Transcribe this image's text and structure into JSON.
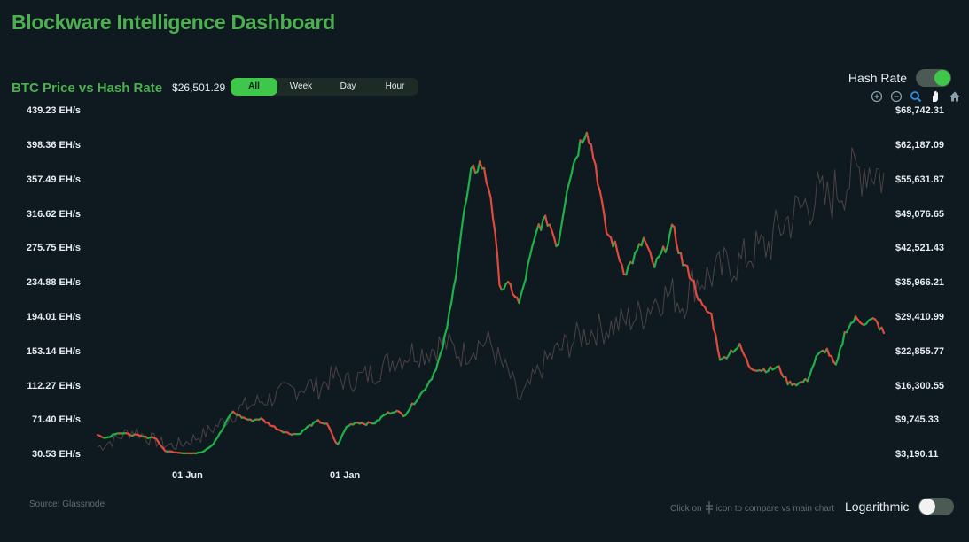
{
  "app_title": "Blockware Intelligence Dashboard",
  "chart_header": {
    "title": "BTC Price vs Hash Rate",
    "current_price": "$26,501.29"
  },
  "range_tabs": [
    {
      "label": "All",
      "active": true
    },
    {
      "label": "Week",
      "active": false
    },
    {
      "label": "Day",
      "active": false
    },
    {
      "label": "Hour",
      "active": false
    }
  ],
  "hash_rate_toggle": {
    "label": "Hash Rate",
    "on": true
  },
  "log_toggle": {
    "label": "Logarithmic",
    "on": false
  },
  "toolbar_icons": [
    "zoom-in-icon",
    "zoom-out-icon",
    "zoom-select-icon",
    "pan-hand-icon",
    "home-reset-icon"
  ],
  "footer": {
    "source": "Source: Glassnode",
    "hint_before": "Click on",
    "hint_after": "icon to compare vs main chart"
  },
  "colors": {
    "accent": "#3ec74a",
    "candle_up": "#1fb149",
    "candle_down": "#e04a3c",
    "hash_rate_line": "#4a4244",
    "background": "#0f1a20"
  },
  "chart_data": {
    "type": "line",
    "left_axis": {
      "unit": "EH/s",
      "ticks": [
        "439.23 EH/s",
        "398.36 EH/s",
        "357.49 EH/s",
        "316.62 EH/s",
        "275.75 EH/s",
        "234.88 EH/s",
        "194.01 EH/s",
        "153.14 EH/s",
        "112.27 EH/s",
        "71.40 EH/s",
        "30.53 EH/s"
      ],
      "range": [
        30.53,
        439.23
      ]
    },
    "right_axis": {
      "unit": "USD",
      "ticks": [
        "$68,742.31",
        "$62,187.09",
        "$55,631.87",
        "$49,076.65",
        "$42,521.43",
        "$35,966.21",
        "$29,410.99",
        "$22,855.77",
        "$16,300.55",
        "$9,745.33",
        "$3,190.11"
      ],
      "range": [
        3190.11,
        68742.31
      ]
    },
    "x_ticks": [
      "01 Jun",
      "01 Jan"
    ],
    "series": [
      {
        "axis": "right",
        "style": "candle",
        "values": [
          7000,
          6500,
          7500,
          7200,
          7000,
          6600,
          6600,
          4000,
          3800,
          3600,
          3500,
          3900,
          5200,
          8000,
          11500,
          10500,
          9800,
          10200,
          9000,
          8000,
          7300,
          7200,
          8700,
          9700,
          9000,
          5000,
          8700,
          9500,
          9200,
          9400,
          11000,
          11700,
          10800,
          13200,
          15500,
          18500,
          23500,
          33000,
          47000,
          57000,
          59000,
          53000,
          35000,
          35500,
          32000,
          40000,
          47000,
          48000,
          43000,
          55000,
          61000,
          66000,
          58000,
          46000,
          43000,
          38000,
          41000,
          44500,
          39000,
          42000,
          46500,
          40000,
          37000,
          31500,
          30000,
          21000,
          23000,
          24000,
          20000,
          19500,
          19500,
          20000,
          17000,
          16800,
          17500,
          22000,
          23500,
          20000,
          27000,
          29200,
          28500,
          29000,
          26501
        ]
      },
      {
        "axis": "left",
        "style": "line",
        "values": [
          40,
          45,
          50,
          57,
          60,
          52,
          48,
          43,
          42,
          45,
          50,
          55,
          62,
          70,
          78,
          87,
          90,
          95,
          98,
          103,
          108,
          110,
          115,
          110,
          120,
          125,
          117,
          122,
          125,
          130,
          138,
          145,
          148,
          155,
          152,
          158,
          165,
          158,
          150,
          158,
          165,
          163,
          140,
          125,
          95,
          112,
          130,
          145,
          155,
          162,
          170,
          175,
          180,
          182,
          185,
          190,
          195,
          200,
          215,
          220,
          222,
          210,
          235,
          240,
          245,
          250,
          260,
          258,
          270,
          275,
          280,
          300,
          310,
          320,
          330,
          340,
          330,
          345,
          355,
          365,
          375,
          372,
          360
        ]
      }
    ]
  }
}
